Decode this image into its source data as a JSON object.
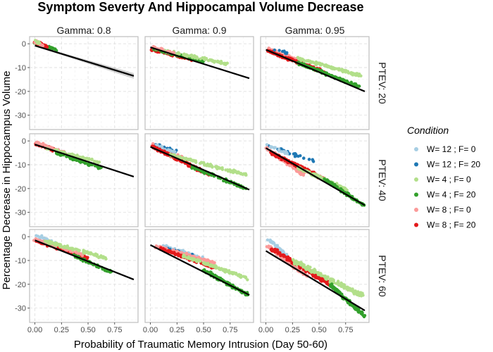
{
  "chart_data": {
    "type": "scatter",
    "title": "Symptom Severty And Hippocampal Volume Decrease",
    "xlabel": "Probability of Traumatic Memory Intrusion (Day 50-60)",
    "ylabel": "Percentage Decrease in Hippocampus Volume",
    "xlim": [
      -0.05,
      0.97
    ],
    "ylim": [
      -36,
      3
    ],
    "x_ticks": [
      0.0,
      0.25,
      0.5,
      0.75
    ],
    "x_tick_labels": [
      "0.00",
      "0.25",
      "0.50",
      "0.75"
    ],
    "y_ticks": [
      0,
      -10,
      -20,
      -30
    ],
    "y_tick_labels": [
      "0",
      "-10",
      "-20",
      "-30"
    ],
    "grid": true,
    "col_facets": [
      "Gamma: 0.8",
      "Gamma: 0.9",
      "Gamma: 0.95"
    ],
    "row_facets": [
      "PTEV: 20",
      "PTEV: 40",
      "PTEV: 60"
    ],
    "legend": {
      "title": "Condition",
      "position": "right",
      "entries": [
        {
          "label": "W= 12 ; F= 0",
          "color": "#a6cee3"
        },
        {
          "label": "W= 12 ; F= 20",
          "color": "#1f78b4"
        },
        {
          "label": "W= 4 ; F= 0",
          "color": "#b2df8a"
        },
        {
          "label": "W= 4 ; F= 20",
          "color": "#33a02c"
        },
        {
          "label": "W= 8 ; F= 0",
          "color": "#fb9a99"
        },
        {
          "label": "W= 8 ; F= 20",
          "color": "#e31a1c"
        }
      ]
    },
    "panels": [
      {
        "row": 0,
        "col": 0,
        "fit": {
          "x": [
            0.0,
            0.93
          ],
          "y": [
            -0.8,
            -13.5
          ]
        },
        "ci": true,
        "clusters": [
          {
            "c": 3,
            "x": [
              0.0,
              0.2
            ],
            "y": [
              0.3,
              -2.5
            ],
            "n": 40
          },
          {
            "c": 5,
            "x": [
              0.0,
              0.12
            ],
            "y": [
              0.5,
              -1.2
            ],
            "n": 30
          },
          {
            "c": 4,
            "x": [
              0.0,
              0.08
            ],
            "y": [
              0.8,
              -1.0
            ],
            "n": 15
          },
          {
            "c": 2,
            "x": [
              0.0,
              0.05
            ],
            "y": [
              1.0,
              0.0
            ],
            "n": 8
          }
        ]
      },
      {
        "row": 0,
        "col": 1,
        "fit": {
          "x": [
            0.0,
            0.93
          ],
          "y": [
            -1.5,
            -14.5
          ]
        },
        "ci": false,
        "clusters": [
          {
            "c": 5,
            "x": [
              0.02,
              0.4
            ],
            "y": [
              -2.5,
              -6.5
            ],
            "n": 120
          },
          {
            "c": 3,
            "x": [
              0.03,
              0.5
            ],
            "y": [
              -2.0,
              -7.5
            ],
            "n": 120
          },
          {
            "c": 2,
            "x": [
              0.1,
              0.72
            ],
            "y": [
              -2.5,
              -8.5
            ],
            "n": 80
          },
          {
            "c": 4,
            "x": [
              0.0,
              0.22
            ],
            "y": [
              -1.0,
              -4.0
            ],
            "n": 30
          }
        ]
      },
      {
        "row": 0,
        "col": 2,
        "fit": {
          "x": [
            0.0,
            0.93
          ],
          "y": [
            -2.5,
            -20.0
          ]
        },
        "ci": false,
        "clusters": [
          {
            "c": 4,
            "x": [
              0.02,
              0.3
            ],
            "y": [
              -2.0,
              -7.0
            ],
            "n": 50
          },
          {
            "c": 5,
            "x": [
              0.02,
              0.55
            ],
            "y": [
              -3.0,
              -12.0
            ],
            "n": 150
          },
          {
            "c": 3,
            "x": [
              0.3,
              0.88
            ],
            "y": [
              -8.0,
              -18.0
            ],
            "n": 150
          },
          {
            "c": 2,
            "x": [
              0.3,
              0.9
            ],
            "y": [
              -6.0,
              -13.5
            ],
            "n": 110
          },
          {
            "c": 1,
            "x": [
              0.05,
              0.2
            ],
            "y": [
              -1.5,
              -4.0
            ],
            "n": 10
          }
        ]
      },
      {
        "row": 1,
        "col": 0,
        "fit": {
          "x": [
            0.0,
            0.93
          ],
          "y": [
            -1.5,
            -15.0
          ]
        },
        "ci": false,
        "clusters": [
          {
            "c": 5,
            "x": [
              0.0,
              0.3
            ],
            "y": [
              -1.0,
              -5.5
            ],
            "n": 80
          },
          {
            "c": 4,
            "x": [
              0.0,
              0.28
            ],
            "y": [
              -0.5,
              -5.0
            ],
            "n": 60
          },
          {
            "c": 2,
            "x": [
              0.1,
              0.6
            ],
            "y": [
              -3.0,
              -9.0
            ],
            "n": 60
          },
          {
            "c": 3,
            "x": [
              0.2,
              0.62
            ],
            "y": [
              -5.0,
              -11.5
            ],
            "n": 60
          }
        ]
      },
      {
        "row": 1,
        "col": 1,
        "fit": {
          "x": [
            0.0,
            0.93
          ],
          "y": [
            -2.5,
            -20.5
          ]
        },
        "ci": false,
        "clusters": [
          {
            "c": 4,
            "x": [
              0.02,
              0.35
            ],
            "y": [
              -1.0,
              -8.0
            ],
            "n": 40
          },
          {
            "c": 1,
            "x": [
              0.05,
              0.25
            ],
            "y": [
              -1.5,
              -4.5
            ],
            "n": 20
          },
          {
            "c": 0,
            "x": [
              0.05,
              0.25
            ],
            "y": [
              -2.0,
              -5.0
            ],
            "n": 20
          },
          {
            "c": 5,
            "x": [
              0.02,
              0.55
            ],
            "y": [
              -2.5,
              -14.0
            ],
            "n": 200
          },
          {
            "c": 2,
            "x": [
              0.2,
              0.92
            ],
            "y": [
              -6.0,
              -14.5
            ],
            "n": 110
          },
          {
            "c": 3,
            "x": [
              0.4,
              0.9
            ],
            "y": [
              -11.0,
              -20.0
            ],
            "n": 100
          }
        ]
      },
      {
        "row": 1,
        "col": 2,
        "fit": {
          "x": [
            0.0,
            0.93
          ],
          "y": [
            -3.0,
            -27.0
          ]
        },
        "ci": false,
        "clusters": [
          {
            "c": 1,
            "x": [
              0.0,
              0.45
            ],
            "y": [
              -1.5,
              -8.5
            ],
            "n": 30
          },
          {
            "c": 0,
            "x": [
              0.0,
              0.2
            ],
            "y": [
              -1.5,
              -5.0
            ],
            "n": 15
          },
          {
            "c": 4,
            "x": [
              0.0,
              0.35
            ],
            "y": [
              -3.0,
              -14.0
            ],
            "n": 100
          },
          {
            "c": 5,
            "x": [
              0.05,
              0.55
            ],
            "y": [
              -5.0,
              -16.0
            ],
            "n": 150
          },
          {
            "c": 2,
            "x": [
              0.3,
              0.78
            ],
            "y": [
              -11.0,
              -21.0
            ],
            "n": 100
          },
          {
            "c": 3,
            "x": [
              0.55,
              0.92
            ],
            "y": [
              -16.0,
              -27.0
            ],
            "n": 110
          }
        ]
      },
      {
        "row": 2,
        "col": 0,
        "fit": {
          "x": [
            0.0,
            0.93
          ],
          "y": [
            -1.5,
            -18.0
          ]
        },
        "ci": false,
        "clusters": [
          {
            "c": 0,
            "x": [
              0.0,
              0.2
            ],
            "y": [
              0.8,
              -3.0
            ],
            "n": 25
          },
          {
            "c": 5,
            "x": [
              0.0,
              0.5
            ],
            "y": [
              -1.5,
              -9.0
            ],
            "n": 120
          },
          {
            "c": 4,
            "x": [
              0.0,
              0.45
            ],
            "y": [
              -1.0,
              -7.5
            ],
            "n": 60
          },
          {
            "c": 2,
            "x": [
              0.1,
              0.68
            ],
            "y": [
              -2.0,
              -9.0
            ],
            "n": 90
          },
          {
            "c": 3,
            "x": [
              0.35,
              0.72
            ],
            "y": [
              -7.5,
              -15.0
            ],
            "n": 60
          }
        ]
      },
      {
        "row": 2,
        "col": 1,
        "fit": {
          "x": [
            0.0,
            0.93
          ],
          "y": [
            -3.5,
            -24.5
          ]
        },
        "ci": false,
        "clusters": [
          {
            "c": 0,
            "x": [
              0.12,
              0.5
            ],
            "y": [
              -4.0,
              -9.0
            ],
            "n": 40
          },
          {
            "c": 1,
            "x": [
              0.15,
              0.4
            ],
            "y": [
              -5.0,
              -8.0
            ],
            "n": 15
          },
          {
            "c": 4,
            "x": [
              0.05,
              0.6
            ],
            "y": [
              -4.0,
              -11.0
            ],
            "n": 100
          },
          {
            "c": 5,
            "x": [
              0.1,
              0.6
            ],
            "y": [
              -5.0,
              -13.0
            ],
            "n": 120
          },
          {
            "c": 2,
            "x": [
              0.3,
              0.92
            ],
            "y": [
              -8.0,
              -17.5
            ],
            "n": 120
          },
          {
            "c": 3,
            "x": [
              0.5,
              0.92
            ],
            "y": [
              -14.0,
              -24.5
            ],
            "n": 130
          }
        ]
      },
      {
        "row": 2,
        "col": 2,
        "fit": {
          "x": [
            0.0,
            0.93
          ],
          "y": [
            -6.0,
            -31.0
          ]
        },
        "ci": false,
        "clusters": [
          {
            "c": 0,
            "x": [
              0.02,
              0.2
            ],
            "y": [
              -1.0,
              -8.0
            ],
            "n": 40
          },
          {
            "c": 4,
            "x": [
              0.02,
              0.4
            ],
            "y": [
              -4.0,
              -17.0
            ],
            "n": 120
          },
          {
            "c": 5,
            "x": [
              0.05,
              0.6
            ],
            "y": [
              -5.0,
              -20.0
            ],
            "n": 150
          },
          {
            "c": 2,
            "x": [
              0.25,
              0.92
            ],
            "y": [
              -10.0,
              -25.0
            ],
            "n": 150
          },
          {
            "c": 3,
            "x": [
              0.6,
              0.92
            ],
            "y": [
              -20.0,
              -33.0
            ],
            "n": 130
          }
        ]
      }
    ]
  }
}
